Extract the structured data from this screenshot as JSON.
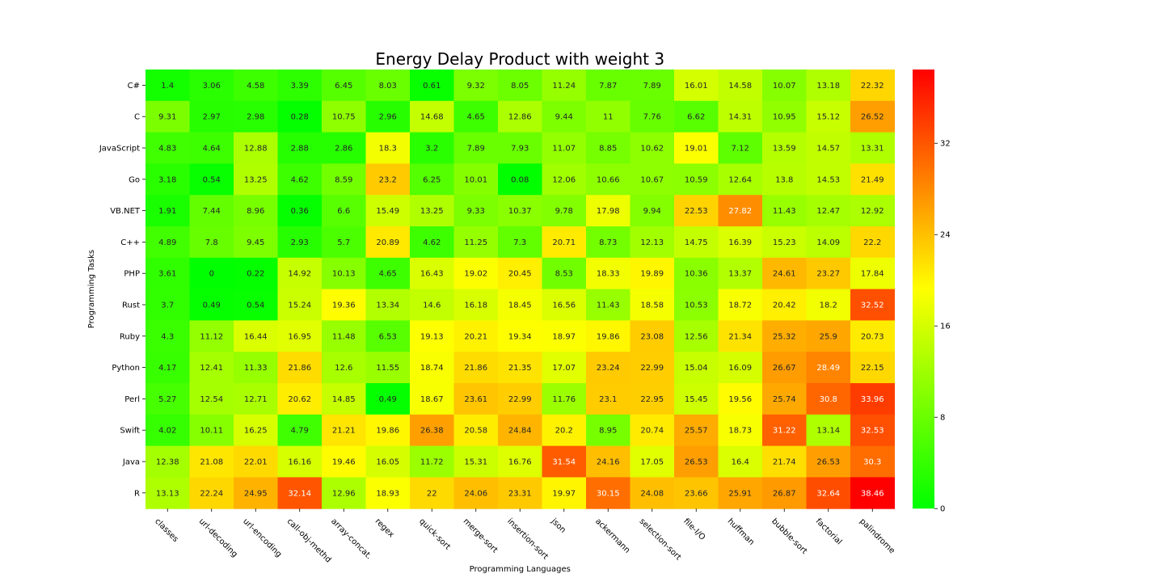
{
  "chart_data": {
    "type": "heatmap",
    "title": "Energy Delay Product with weight 3",
    "xlabel": "Programming Languages",
    "ylabel": "Programming Tasks",
    "x_categories": [
      "classes",
      "url-decoding",
      "url-encoding",
      "call-obj-methd",
      "array-concat.",
      "regex",
      "quick-sort",
      "merge-sort",
      "insertion-sort",
      "json",
      "ackermann",
      "selection-sort",
      "file-I/O",
      "huffman",
      "bubble-sort",
      "factorial",
      "palindrome"
    ],
    "y_categories": [
      "C#",
      "C",
      "JavaScript",
      "Go",
      "VB.NET",
      "C++",
      "PHP",
      "Rust",
      "Ruby",
      "Python",
      "Perl",
      "Swift",
      "Java",
      "R"
    ],
    "values": [
      [
        1.4,
        3.06,
        4.58,
        3.39,
        6.45,
        8.03,
        0.61,
        9.32,
        8.05,
        11.24,
        7.87,
        7.89,
        16.01,
        14.58,
        10.07,
        13.18,
        22.32
      ],
      [
        9.31,
        2.97,
        2.98,
        0.28,
        10.75,
        2.96,
        14.68,
        4.65,
        12.86,
        9.44,
        11,
        7.76,
        6.62,
        14.31,
        10.95,
        15.12,
        26.52
      ],
      [
        4.83,
        4.64,
        12.88,
        2.88,
        2.86,
        18.3,
        3.2,
        7.89,
        7.93,
        11.07,
        8.85,
        10.62,
        19.01,
        7.12,
        13.59,
        14.57,
        13.31
      ],
      [
        3.18,
        0.54,
        13.25,
        4.62,
        8.59,
        23.2,
        6.25,
        10.01,
        0.08,
        12.06,
        10.66,
        10.67,
        10.59,
        12.64,
        13.8,
        14.53,
        21.49
      ],
      [
        1.91,
        7.44,
        8.96,
        0.36,
        6.6,
        15.49,
        13.25,
        9.33,
        10.37,
        9.78,
        17.98,
        9.94,
        22.53,
        27.82,
        11.43,
        12.47,
        12.92
      ],
      [
        4.89,
        7.8,
        9.45,
        2.93,
        5.7,
        20.89,
        4.62,
        11.25,
        7.3,
        20.71,
        8.73,
        12.13,
        14.75,
        16.39,
        15.23,
        14.09,
        22.2
      ],
      [
        3.61,
        0,
        0.22,
        14.92,
        10.13,
        4.65,
        16.43,
        19.02,
        20.45,
        8.53,
        18.33,
        19.89,
        10.36,
        13.37,
        24.61,
        23.27,
        17.84
      ],
      [
        3.7,
        0.49,
        0.54,
        15.24,
        19.36,
        13.34,
        14.6,
        16.18,
        18.45,
        16.56,
        11.43,
        18.58,
        10.53,
        18.72,
        20.42,
        18.2,
        32.52
      ],
      [
        4.3,
        11.12,
        16.44,
        16.95,
        11.48,
        6.53,
        19.13,
        20.21,
        19.34,
        18.97,
        19.86,
        23.08,
        12.56,
        21.34,
        25.32,
        25.9,
        20.73
      ],
      [
        4.17,
        12.41,
        11.33,
        21.86,
        12.6,
        11.55,
        18.74,
        21.86,
        21.35,
        17.07,
        23.24,
        22.99,
        15.04,
        16.09,
        26.67,
        28.49,
        22.15
      ],
      [
        5.27,
        12.54,
        12.71,
        20.62,
        14.85,
        0.49,
        18.67,
        23.61,
        22.99,
        11.76,
        23.1,
        22.95,
        15.45,
        19.56,
        25.74,
        30.8,
        33.96
      ],
      [
        4.02,
        10.11,
        16.25,
        4.79,
        21.21,
        19.86,
        26.38,
        20.58,
        24.84,
        20.2,
        8.95,
        20.74,
        25.57,
        18.73,
        31.22,
        13.14,
        32.53
      ],
      [
        12.38,
        21.08,
        22.01,
        16.16,
        19.46,
        16.05,
        11.72,
        15.31,
        16.76,
        31.54,
        24.16,
        17.05,
        26.53,
        16.4,
        21.74,
        26.53,
        30.3
      ],
      [
        13.13,
        22.24,
        24.95,
        32.14,
        12.96,
        18.93,
        22,
        24.06,
        23.31,
        19.97,
        30.15,
        24.08,
        23.66,
        25.91,
        26.87,
        32.64,
        38.46
      ]
    ],
    "colorscale": [
      "#00ff00",
      "#ffff00",
      "#ff0000"
    ],
    "vmin": 0,
    "vmax": 38.46,
    "colorbar_ticks": [
      0,
      8,
      16,
      24,
      32
    ]
  }
}
